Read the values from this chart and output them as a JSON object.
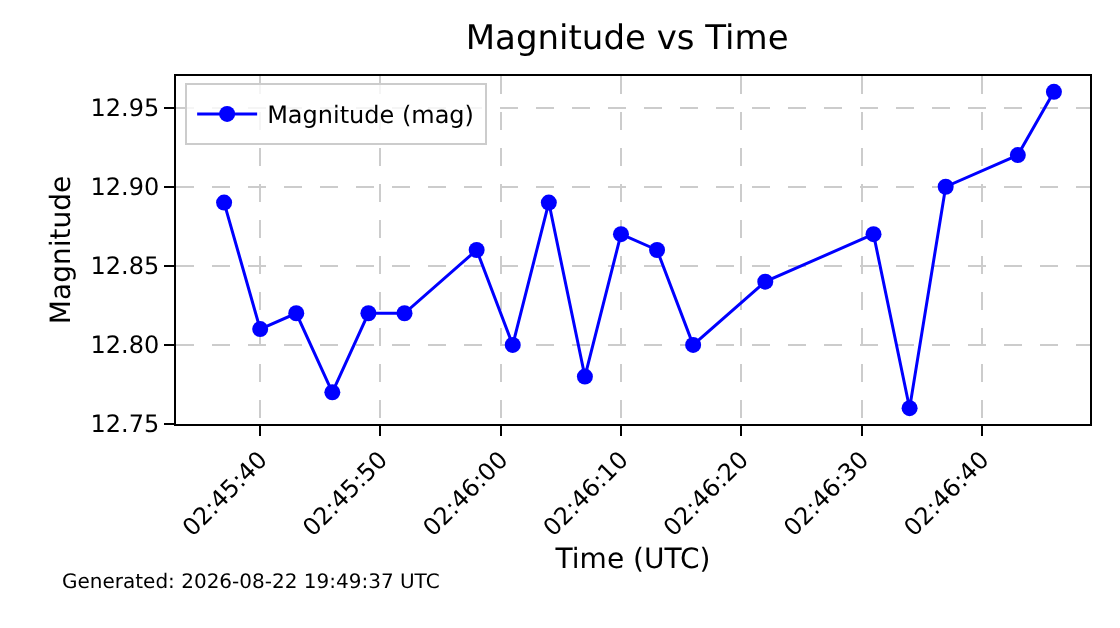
{
  "chart_data": {
    "type": "line",
    "title": "Magnitude vs Time",
    "xlabel": "Time (UTC)",
    "ylabel": "Magnitude",
    "x": [
      "2026-08-22T02:45:37",
      "2026-08-22T02:45:40",
      "2026-08-22T02:45:43",
      "2026-08-22T02:45:46",
      "2026-08-22T02:45:49",
      "2026-08-22T02:45:52",
      "2026-08-22T02:45:58",
      "2026-08-22T02:46:01",
      "2026-08-22T02:46:04",
      "2026-08-22T02:46:07",
      "2026-08-22T02:46:10",
      "2026-08-22T02:46:13",
      "2026-08-22T02:46:16",
      "2026-08-22T02:46:22",
      "2026-08-22T02:46:31",
      "2026-08-22T02:46:34",
      "2026-08-22T02:46:37",
      "2026-08-22T02:46:43",
      "2026-08-22T02:46:46"
    ],
    "series": [
      {
        "name": "Magnitude (mag)",
        "color": "#0000ff",
        "values": [
          12.89,
          12.81,
          12.82,
          12.77,
          12.82,
          12.82,
          12.86,
          12.8,
          12.89,
          12.78,
          12.87,
          12.86,
          12.8,
          12.84,
          12.87,
          12.76,
          12.9,
          12.92,
          12.96
        ]
      }
    ],
    "xlim": [
      "2026-08-22T02:45:33",
      "2026-08-22T02:46:49"
    ],
    "xticks": [
      {
        "value": "2026-08-22T02:45:40",
        "label": "02:45:40"
      },
      {
        "value": "2026-08-22T02:45:50",
        "label": "02:45:50"
      },
      {
        "value": "2026-08-22T02:46:00",
        "label": "02:46:00"
      },
      {
        "value": "2026-08-22T02:46:10",
        "label": "02:46:10"
      },
      {
        "value": "2026-08-22T02:46:20",
        "label": "02:46:20"
      },
      {
        "value": "2026-08-22T02:46:30",
        "label": "02:46:30"
      },
      {
        "value": "2026-08-22T02:46:40",
        "label": "02:46:40"
      }
    ],
    "ylim": [
      12.75,
      12.97
    ],
    "yticks": [
      {
        "value": 12.75,
        "label": "12.75"
      },
      {
        "value": 12.8,
        "label": "12.80"
      },
      {
        "value": 12.85,
        "label": "12.85"
      },
      {
        "value": 12.9,
        "label": "12.90"
      },
      {
        "value": 12.95,
        "label": "12.95"
      }
    ],
    "grid": true,
    "legend": "top left",
    "marker": "circle",
    "line_style": "solid",
    "annotations": [
      "Generated: 2026-08-22 19:49:37 UTC"
    ]
  }
}
